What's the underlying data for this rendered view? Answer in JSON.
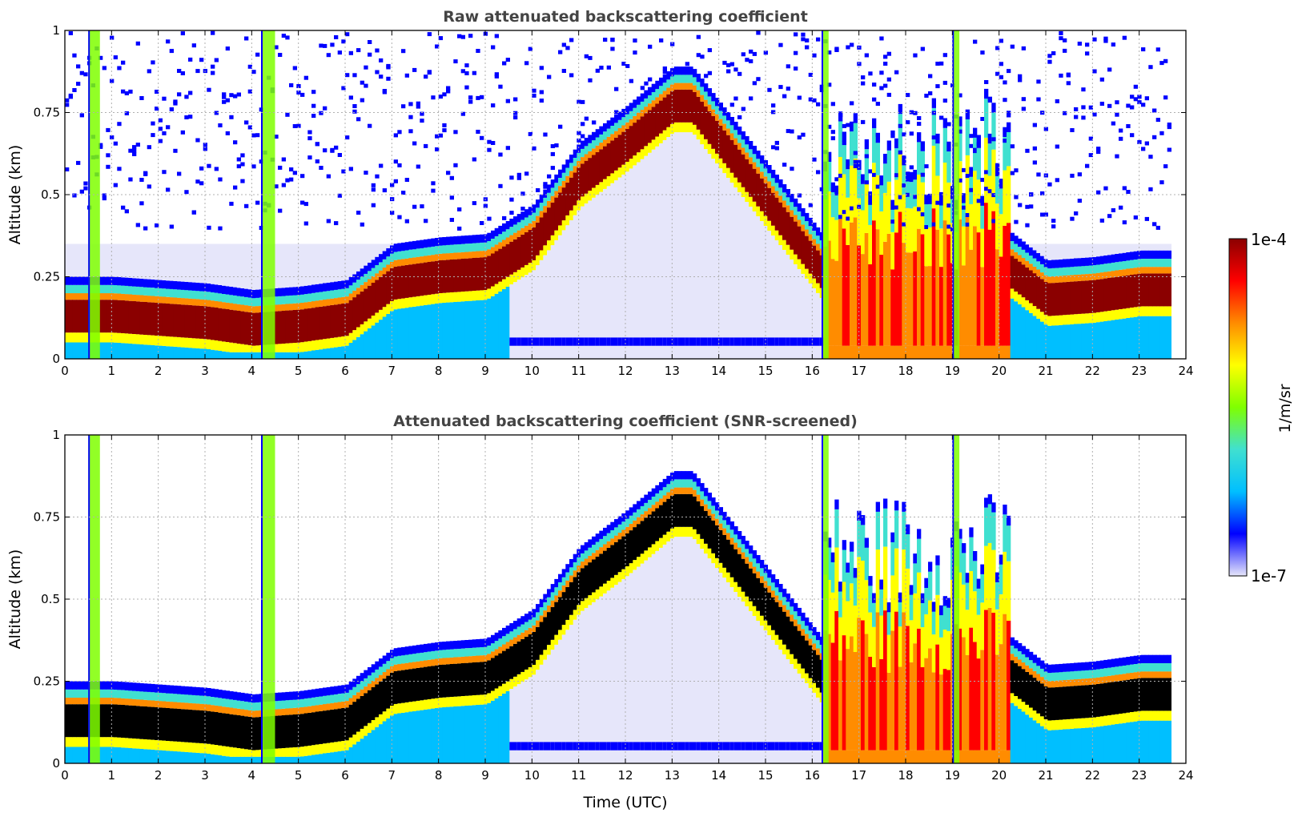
{
  "chart_data": [
    {
      "type": "heatmap",
      "title": "Raw attenuated backscattering coefficient",
      "xlabel": "",
      "ylabel": "Altitude (km)",
      "xlim": [
        0,
        24
      ],
      "ylim": [
        0,
        1
      ],
      "xticks": [
        "0",
        "1",
        "2",
        "3",
        "4",
        "5",
        "6",
        "7",
        "8",
        "9",
        "10",
        "11",
        "12",
        "13",
        "14",
        "15",
        "16",
        "17",
        "18",
        "19",
        "20",
        "21",
        "22",
        "23",
        "24"
      ],
      "yticks": [
        "0",
        "0.25",
        "0.5",
        "0.75",
        "1"
      ],
      "grid": true,
      "data_end_time": 23.6,
      "layer_top_km": [
        {
          "t": 0.0,
          "alt": 0.14
        },
        {
          "t": 1.0,
          "alt": 0.14
        },
        {
          "t": 2.0,
          "alt": 0.13
        },
        {
          "t": 3.0,
          "alt": 0.12
        },
        {
          "t": 4.0,
          "alt": 0.1
        },
        {
          "t": 5.0,
          "alt": 0.11
        },
        {
          "t": 6.0,
          "alt": 0.13
        },
        {
          "t": 7.0,
          "alt": 0.24
        },
        {
          "t": 8.0,
          "alt": 0.26
        },
        {
          "t": 9.0,
          "alt": 0.27
        },
        {
          "t": 10.0,
          "alt": 0.36
        },
        {
          "t": 11.0,
          "alt": 0.55
        },
        {
          "t": 12.0,
          "alt": 0.66
        },
        {
          "t": 13.0,
          "alt": 0.78
        },
        {
          "t": 13.4,
          "alt": 0.78
        },
        {
          "t": 16.3,
          "alt": 0.25
        },
        {
          "t": 18.0,
          "alt": 0.2
        },
        {
          "t": 20.0,
          "alt": 0.3
        },
        {
          "t": 21.0,
          "alt": 0.19
        },
        {
          "t": 22.0,
          "alt": 0.2
        },
        {
          "t": 23.0,
          "alt": 0.22
        },
        {
          "t": 23.6,
          "alt": 0.22
        }
      ]
    },
    {
      "type": "heatmap",
      "title": "Attenuated backscattering coefficient (SNR-screened)",
      "xlabel": "Time (UTC)",
      "ylabel": "Altitude (km)",
      "xlim": [
        0,
        24
      ],
      "ylim": [
        0,
        1
      ],
      "xticks": [
        "0",
        "1",
        "2",
        "3",
        "4",
        "5",
        "6",
        "7",
        "8",
        "9",
        "10",
        "11",
        "12",
        "13",
        "14",
        "15",
        "16",
        "17",
        "18",
        "19",
        "20",
        "21",
        "22",
        "23",
        "24"
      ],
      "yticks": [
        "0",
        "0.25",
        "0.5",
        "0.75",
        "1"
      ],
      "grid": true,
      "data_end_time": 23.6
    }
  ],
  "colorbar": {
    "label": "1/m/sr",
    "max_label": "1e-4",
    "min_label": "1e-7",
    "colormap": "jet",
    "colors": [
      "#e6e6fa",
      "#0000ff",
      "#00bfff",
      "#40e0d0",
      "#7fff00",
      "#ffff00",
      "#ff8c00",
      "#ff0000",
      "#8b0000"
    ]
  }
}
